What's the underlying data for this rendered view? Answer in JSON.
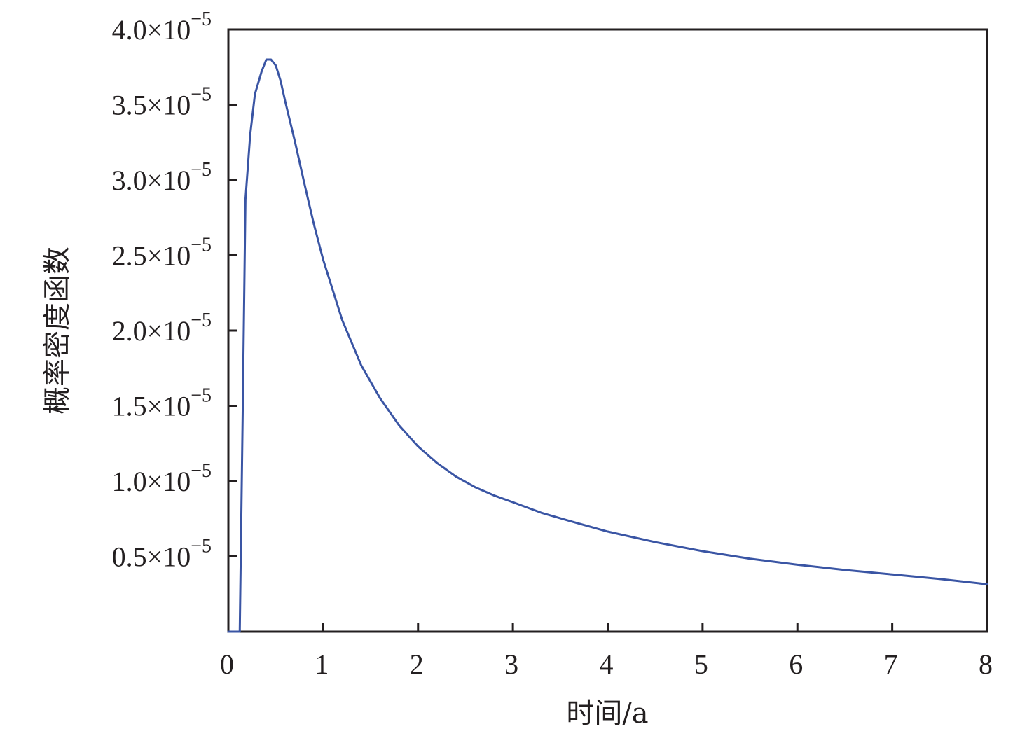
{
  "chart_data": {
    "type": "line",
    "xlabel": "时间/a",
    "ylabel": "概率密度函数",
    "xlim": [
      0,
      8
    ],
    "ylim": [
      0,
      4e-05
    ],
    "grid": false,
    "x_ticks": [
      0,
      1,
      2,
      3,
      4,
      5,
      6,
      7,
      8
    ],
    "x_tick_labels": [
      "0",
      "1",
      "2",
      "3",
      "4",
      "5",
      "6",
      "7",
      "8"
    ],
    "y_ticks": [
      5e-06,
      1e-05,
      1.5e-05,
      2e-05,
      2.5e-05,
      3e-05,
      3.5e-05,
      4e-05
    ],
    "y_tick_labels": [
      {
        "mantissa": "0.5",
        "times": "×10",
        "exponent": "−5"
      },
      {
        "mantissa": "1.0",
        "times": "×10",
        "exponent": "−5"
      },
      {
        "mantissa": "1.5",
        "times": "×10",
        "exponent": "−5"
      },
      {
        "mantissa": "2.0",
        "times": "×10",
        "exponent": "−5"
      },
      {
        "mantissa": "2.5",
        "times": "×10",
        "exponent": "−5"
      },
      {
        "mantissa": "3.0",
        "times": "×10",
        "exponent": "−5"
      },
      {
        "mantissa": "3.5",
        "times": "×10",
        "exponent": "−5"
      },
      {
        "mantissa": "4.0",
        "times": "×10",
        "exponent": "−5"
      }
    ],
    "series": [
      {
        "color": "#3a55a4",
        "x": [
          0.0,
          0.12,
          0.15,
          0.18,
          0.23,
          0.28,
          0.35,
          0.4,
          0.45,
          0.5,
          0.55,
          0.6,
          0.7,
          0.8,
          0.9,
          1.0,
          1.2,
          1.4,
          1.6,
          1.8,
          2.0,
          2.2,
          2.4,
          2.6,
          2.8,
          3.0,
          3.3,
          3.6,
          4.0,
          4.5,
          5.0,
          5.5,
          6.0,
          6.5,
          7.0,
          7.5,
          8.0
        ],
        "y": [
          0.0,
          0.0,
          1.4e-05,
          2.87e-05,
          3.3e-05,
          3.57e-05,
          3.72e-05,
          3.8e-05,
          3.8e-05,
          3.76e-05,
          3.66e-05,
          3.52e-05,
          3.26e-05,
          2.98e-05,
          2.71e-05,
          2.47e-05,
          2.07e-05,
          1.77e-05,
          1.55e-05,
          1.37e-05,
          1.23e-05,
          1.12e-05,
          1.03e-05,
          9.6e-06,
          9.05e-06,
          8.6e-06,
          7.9e-06,
          7.35e-06,
          6.65e-06,
          5.95e-06,
          5.35e-06,
          4.85e-06,
          4.45e-06,
          4.1e-06,
          3.8e-06,
          3.5e-06,
          3.15e-06
        ]
      }
    ]
  }
}
